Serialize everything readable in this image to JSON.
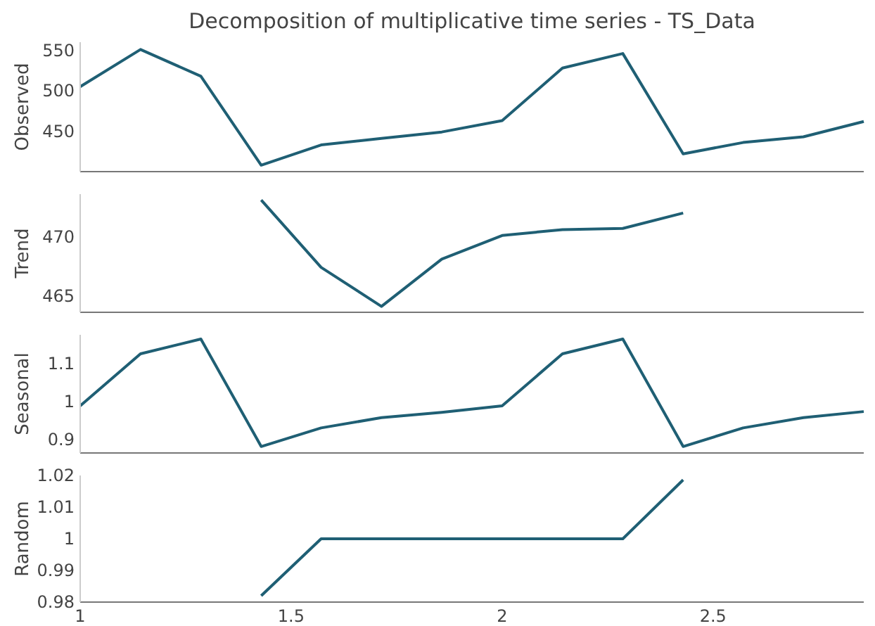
{
  "chart_data": [
    {
      "type": "line",
      "title": "Decomposition of multiplicative time series - TS_Data",
      "ylabel": "Observed",
      "x": [
        1,
        1.143,
        1.286,
        1.429,
        1.571,
        1.714,
        1.857,
        2,
        2.143,
        2.286,
        2.429,
        2.571,
        2.714,
        2.857
      ],
      "xlim": [
        1,
        2.857
      ],
      "ylim": [
        400,
        560
      ],
      "yticks": [
        450,
        500,
        550
      ],
      "tick_labels": "y",
      "grid": false,
      "series": [
        {
          "color": "#1f5f74",
          "values": [
            505,
            551,
            518,
            408,
            433,
            441,
            449,
            463,
            528,
            546,
            422,
            436,
            443,
            462
          ]
        }
      ]
    },
    {
      "type": "line",
      "ylabel": "Trend",
      "xlim": [
        1,
        2.857
      ],
      "yticks": [
        465,
        470
      ],
      "ylim": [
        463.6,
        473.6
      ],
      "tick_labels": "y",
      "grid": false,
      "series": [
        {
          "color": "#1f5f74",
          "x": [
            1.429,
            1.571,
            1.714,
            1.857,
            2,
            2.143,
            2.286,
            2.429
          ],
          "values": [
            473.1,
            467.4,
            464.1,
            468.1,
            470.1,
            470.6,
            470.7,
            472
          ]
        }
      ]
    },
    {
      "type": "line",
      "ylabel": "Seasonal",
      "x": [
        1,
        1.143,
        1.286,
        1.429,
        1.571,
        1.714,
        1.857,
        2,
        2.143,
        2.286,
        2.429,
        2.571,
        2.714,
        2.857
      ],
      "xlim": [
        1,
        2.857
      ],
      "ylim": [
        0.864,
        1.175
      ],
      "yticks": [
        0.9,
        1,
        1.1
      ],
      "tick_labels": "y",
      "grid": false,
      "series": [
        {
          "color": "#1f5f74",
          "values": [
            0.988,
            1.125,
            1.164,
            0.881,
            0.93,
            0.957,
            0.971,
            0.988,
            1.125,
            1.164,
            0.881,
            0.93,
            0.957,
            0.973
          ]
        }
      ]
    },
    {
      "type": "line",
      "ylabel": "Random",
      "xlim": [
        1,
        2.857
      ],
      "xticks": [
        1,
        1.5,
        2,
        2.5
      ],
      "ylim": [
        0.98,
        1.02
      ],
      "yticks": [
        0.98,
        0.99,
        1,
        1.01,
        1.02
      ],
      "grid": false,
      "series": [
        {
          "color": "#1f5f74",
          "x": [
            1.429,
            1.571,
            1.714,
            1.857,
            2,
            2.143,
            2.286,
            2.429
          ],
          "values": [
            0.982,
            1,
            1,
            1,
            1,
            1,
            1,
            1.0186
          ]
        }
      ]
    }
  ]
}
